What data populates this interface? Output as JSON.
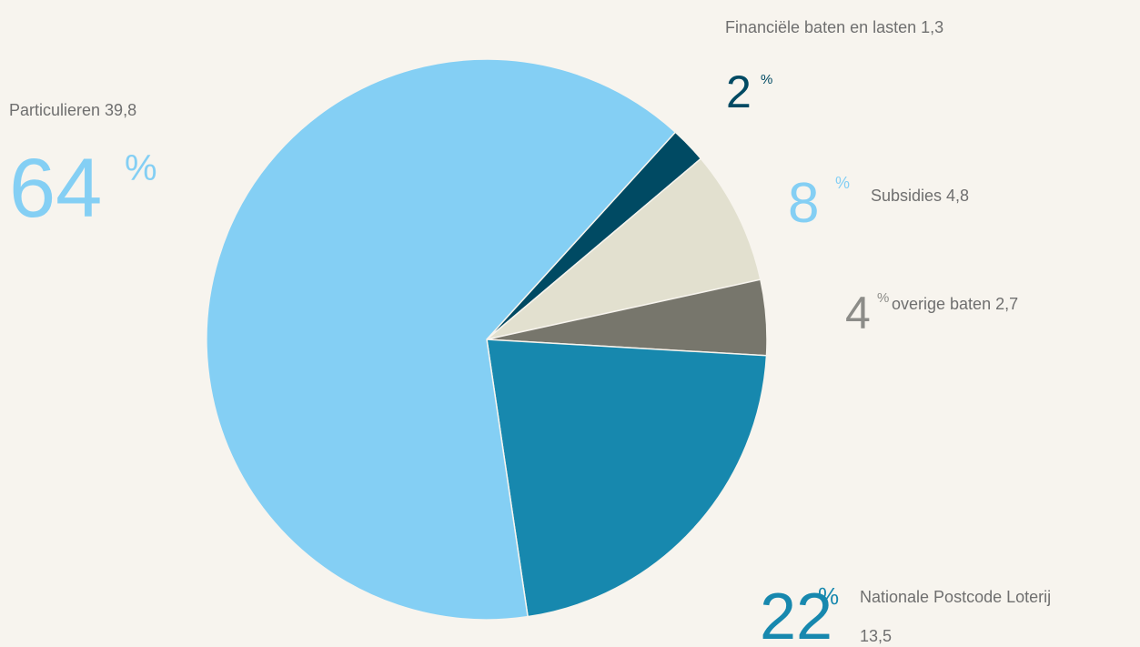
{
  "chart_data": {
    "type": "pie",
    "categories": [
      "Financiële baten en lasten",
      "Subsidies",
      "overige baten",
      "Nationale Postcode Loterij",
      "Particulieren"
    ],
    "values": [
      1.3,
      4.8,
      2.7,
      13.5,
      39.8
    ],
    "value_labels": [
      "1,3",
      "4,8",
      "2,7",
      "13,5",
      "39,8"
    ],
    "percentages": [
      2,
      8,
      4,
      22,
      64
    ],
    "percent_unit": "%",
    "colors": [
      "#004a63",
      "#e2e0cf",
      "#77766c",
      "#1788ae",
      "#84cff4"
    ],
    "percent_colors": [
      "#004a63",
      "#84cff4",
      "#8c8c88",
      "#1788ae",
      "#84cff4"
    ]
  }
}
